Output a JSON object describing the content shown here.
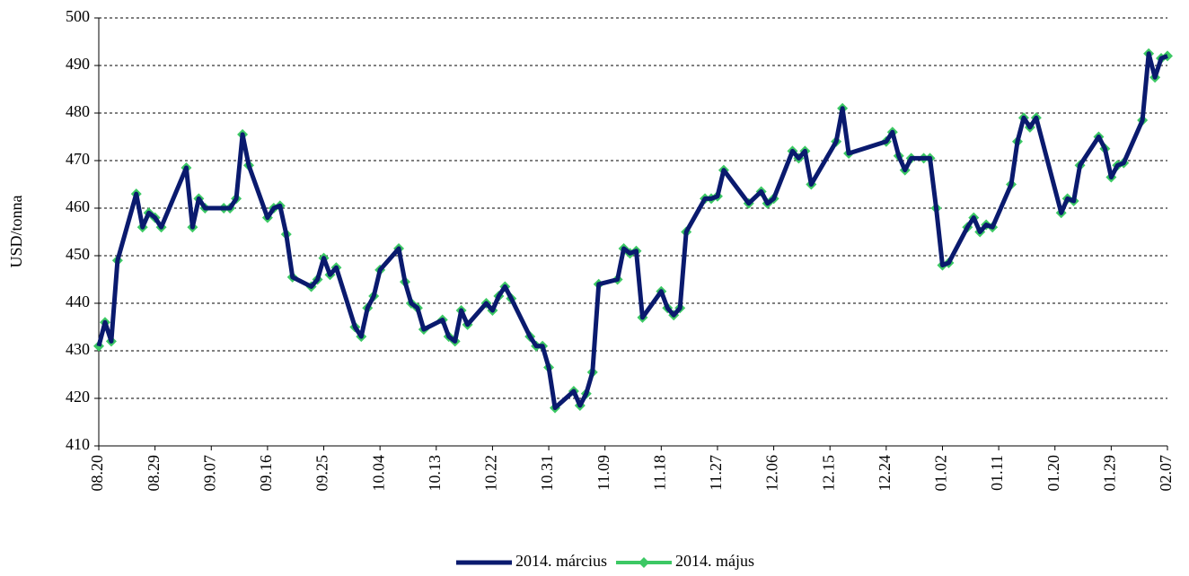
{
  "chart_data": {
    "type": "line",
    "y_label": "USD/tonna",
    "x": [
      "08.20",
      "08.21",
      "08.22",
      "08.23",
      "08.26",
      "08.27",
      "08.28",
      "08.29",
      "08.30",
      "09.03",
      "09.04",
      "09.05",
      "09.06",
      "09.09",
      "09.10",
      "09.11",
      "09.12",
      "09.13",
      "09.16",
      "09.17",
      "09.18",
      "09.19",
      "09.20",
      "09.23",
      "09.24",
      "09.25",
      "09.26",
      "09.27",
      "09.30",
      "10.01",
      "10.02",
      "10.03",
      "10.04",
      "10.07",
      "10.08",
      "10.09",
      "10.10",
      "10.11",
      "10.14",
      "10.15",
      "10.16",
      "10.17",
      "10.18",
      "10.21",
      "10.22",
      "10.23",
      "10.24",
      "10.25",
      "10.28",
      "10.29",
      "10.30",
      "10.31",
      "11.01",
      "11.04",
      "11.05",
      "11.06",
      "11.07",
      "11.08",
      "11.11",
      "11.12",
      "11.13",
      "11.14",
      "11.15",
      "11.18",
      "11.19",
      "11.20",
      "11.21",
      "11.22",
      "11.25",
      "11.26",
      "11.27",
      "11.28",
      "12.02",
      "12.04",
      "12.05",
      "12.06",
      "12.09",
      "12.10",
      "12.11",
      "12.12",
      "12.16",
      "12.17",
      "12.18",
      "12.24",
      "12.25",
      "12.26",
      "12.27",
      "12.28",
      "12.30",
      "12.31",
      "01.01",
      "01.02",
      "01.03",
      "01.06",
      "01.07",
      "01.08",
      "01.09",
      "01.10",
      "01.13",
      "01.14",
      "01.15",
      "01.16",
      "01.17",
      "01.21",
      "01.22",
      "01.23",
      "01.24",
      "01.27",
      "01.28",
      "01.29",
      "01.30",
      "01.31",
      "02.03",
      "02.04",
      "02.05",
      "02.06",
      "02.07"
    ],
    "series": [
      {
        "name": "2014. március",
        "color": "#0a1a6e",
        "values": [
          431,
          436,
          432,
          449,
          463,
          456,
          459,
          458,
          456,
          468.5,
          456,
          462,
          460,
          460,
          460,
          462,
          475.5,
          469,
          458,
          460,
          460.5,
          454.5,
          445.5,
          443.5,
          445,
          449.5,
          446,
          447.5,
          435,
          433,
          439,
          441.5,
          447,
          451.5,
          444.5,
          440,
          439,
          434.5,
          436.5,
          433,
          432,
          438.5,
          435.5,
          440,
          438.5,
          441.5,
          443.5,
          441,
          433,
          431,
          431,
          426.5,
          418,
          421.5,
          418.5,
          421,
          425.5,
          444,
          445,
          451.5,
          450.5,
          451,
          437,
          442.5,
          439,
          437.5,
          439,
          455,
          462,
          462,
          462.5,
          468,
          461,
          463.5,
          461,
          462,
          472,
          470.5,
          472,
          465,
          474,
          481,
          471.5,
          474,
          476,
          471,
          468,
          470.5,
          470.5,
          470.5,
          460,
          448,
          448.5,
          456,
          458,
          455,
          456.5,
          456,
          465,
          474,
          479,
          477,
          479,
          459,
          462,
          461.5,
          469,
          475,
          472.5,
          466.5,
          469,
          469.5,
          478.5,
          492.5,
          487.5,
          491.5,
          492
        ]
      },
      {
        "name": "2014. május",
        "color": "#3cc864",
        "values": [
          431,
          436,
          432,
          449,
          463,
          456,
          459,
          458,
          456,
          468.5,
          456,
          462,
          460,
          460,
          460,
          462,
          475.5,
          469,
          458,
          460,
          460.5,
          454.5,
          445.5,
          443.5,
          445,
          449.5,
          446,
          447.5,
          435,
          433,
          439,
          441.5,
          447,
          451.5,
          444.5,
          440,
          439,
          434.5,
          436.5,
          433,
          432,
          438.5,
          435.5,
          440,
          438.5,
          441.5,
          443.5,
          441,
          433,
          431,
          431,
          426.5,
          418,
          421.5,
          418.5,
          421,
          425.5,
          444,
          445,
          451.5,
          450.5,
          451,
          437,
          442.5,
          439,
          437.5,
          439,
          455,
          462,
          462,
          462.5,
          468,
          461,
          463.5,
          461,
          462,
          472,
          470.5,
          472,
          465,
          474,
          481,
          471.5,
          474,
          476,
          471,
          468,
          470.5,
          470.5,
          470.5,
          460,
          448,
          448.5,
          456,
          458,
          455,
          456.5,
          456,
          465,
          474,
          479,
          477,
          479,
          459,
          462,
          461.5,
          469,
          475,
          472.5,
          466.5,
          469,
          469.5,
          478.5,
          492.5,
          487.5,
          491.5,
          492
        ]
      }
    ],
    "xlim": [
      "08.20",
      "02.07"
    ],
    "xticks": [
      "08.20",
      "08.29",
      "09.07",
      "09.16",
      "09.25",
      "10.04",
      "10.13",
      "10.22",
      "10.31",
      "11.09",
      "11.18",
      "11.27",
      "12.06",
      "12.15",
      "12.24",
      "01.02",
      "01.11",
      "01.20",
      "01.29",
      "02.07"
    ],
    "ylim": [
      410,
      500
    ],
    "yticks": [
      410,
      420,
      430,
      440,
      450,
      460,
      470,
      480,
      490,
      500
    ],
    "grid": true,
    "legend": "bottom"
  }
}
